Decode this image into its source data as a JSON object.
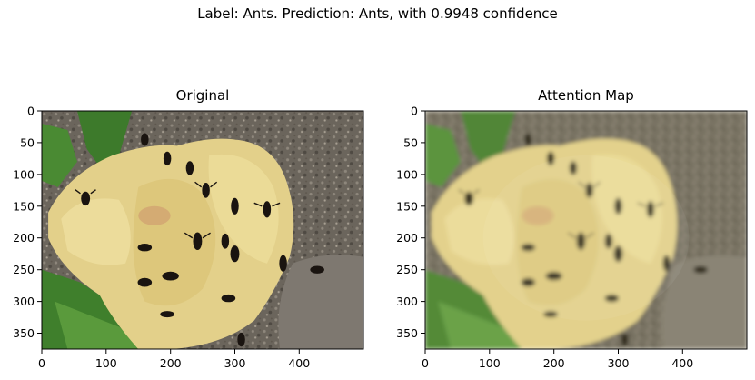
{
  "figure": {
    "suptitle": "Label: Ants. Prediction: Ants, with 0.9948 confidence"
  },
  "panels": [
    {
      "title": "Original",
      "xticks": [
        "0",
        "100",
        "200",
        "300",
        "400"
      ],
      "yticks": [
        "0",
        "50",
        "100",
        "150",
        "200",
        "250",
        "300",
        "350"
      ]
    },
    {
      "title": "Attention Map",
      "xticks": [
        "0",
        "100",
        "200",
        "300",
        "400"
      ],
      "yticks": [
        "0",
        "50",
        "100",
        "150",
        "200",
        "250",
        "300",
        "350"
      ]
    }
  ],
  "image": {
    "description_color_background": "#6f6a62",
    "banana_color": "#e6d48a",
    "leaf_color": "#3f7a2a",
    "ant_color": "#1a1410"
  }
}
